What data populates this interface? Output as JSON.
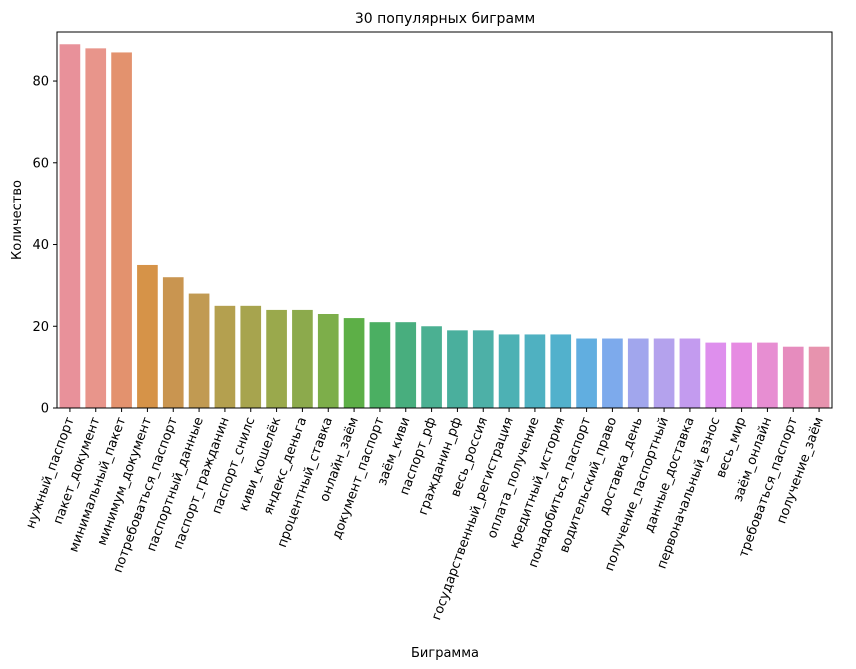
{
  "chart_data": {
    "type": "bar",
    "title": "30 популярных биграмм",
    "xlabel": "Биграмма",
    "ylabel": "Количество",
    "ylim": [
      0,
      92
    ],
    "yticks": [
      0,
      20,
      40,
      60,
      80
    ],
    "xtick_rotation_deg": 70,
    "legend": "none",
    "grid": false,
    "categories": [
      "нужный_паспорт",
      "пакет_документ",
      "минимальный_пакет",
      "минимум_документ",
      "потребоваться_паспорт",
      "паспортный_данные",
      "паспорт_гражданин",
      "паспорт_снилс",
      "киви_кошелёк",
      "яндекс_деньга",
      "процентный_ставка",
      "онлайн_заём",
      "документ_паспорт",
      "заём_киви",
      "паспорт_рф",
      "гражданин_рф",
      "весь_россия",
      "государственный_регистрация",
      "оплата_получение",
      "кредитный_история",
      "понадобиться_паспорт",
      "водительский_право",
      "доставка_день",
      "получение_паспортный",
      "данные_доставка",
      "первоначальный_взнос",
      "весь_мир",
      "заём_онлайн",
      "требоваться_паспорт",
      "получение_заём"
    ],
    "values": [
      89,
      88,
      87,
      35,
      32,
      28,
      25,
      25,
      24,
      24,
      23,
      22,
      21,
      21,
      20,
      19,
      19,
      18,
      18,
      18,
      17,
      17,
      17,
      17,
      17,
      16,
      16,
      16,
      15,
      15
    ],
    "colors": [
      "#e8919a",
      "#e8958b",
      "#e3926e",
      "#d69348",
      "#c99550",
      "#c19a52",
      "#b4a04f",
      "#a7a44e",
      "#9aa94c",
      "#8caa4c",
      "#7dae4a",
      "#5daf47",
      "#4baf62",
      "#48ae7e",
      "#4bb092",
      "#4aaf9d",
      "#4db0a7",
      "#4db1b4",
      "#4fb1c1",
      "#52b1cc",
      "#61aee0",
      "#7daaec",
      "#a1a6ed",
      "#b4a2ed",
      "#c39bef",
      "#de8fed",
      "#e68be2",
      "#e78ed2",
      "#e68cbe",
      "#e793ae"
    ]
  }
}
